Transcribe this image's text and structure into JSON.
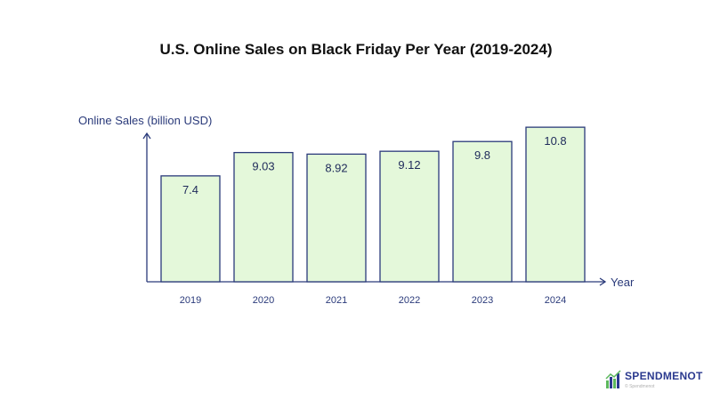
{
  "chart_data": {
    "type": "bar",
    "title": "U.S. Online Sales on Black Friday Per Year (2019-2024)",
    "ylabel": "Online Sales (billion USD)",
    "xlabel": "Year",
    "categories": [
      "2019",
      "2020",
      "2021",
      "2022",
      "2023",
      "2024"
    ],
    "values": [
      7.4,
      9.03,
      8.92,
      9.12,
      9.8,
      10.8
    ],
    "data_labels": [
      "7.4",
      "9.03",
      "8.92",
      "9.12",
      "9.8",
      "10.8"
    ],
    "ylim": [
      0,
      12
    ],
    "grid": false,
    "legend": "none",
    "colors": {
      "bar_fill": "#e4f8da",
      "bar_stroke": "#2a3a7a",
      "axis": "#2a3a7a"
    }
  },
  "brand": {
    "name": "SPENDMENOT",
    "credit": "© Spendmenot",
    "icon": "bar-chart-logo-icon",
    "colors": {
      "text": "#2b3a8f",
      "green": "#5cb85c",
      "blue": "#2b3a8f"
    }
  }
}
